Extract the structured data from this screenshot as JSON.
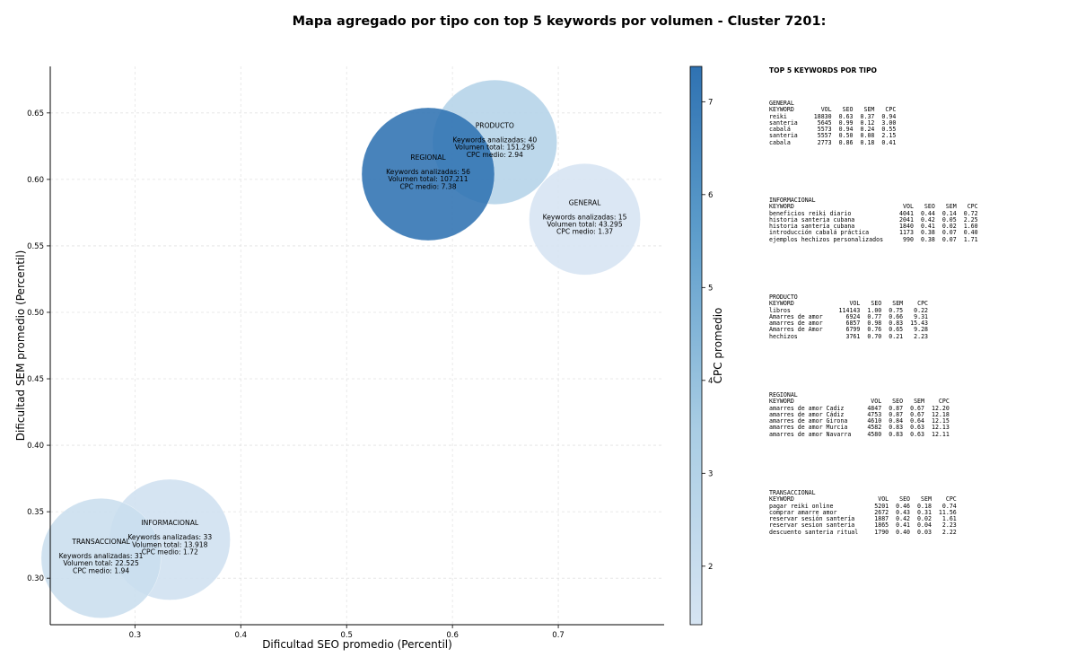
{
  "title": "Mapa agregado por tipo con top 5 keywords por volumen - Cluster 7201:",
  "chart_data": {
    "type": "scatter",
    "xlabel": "Dificultad SEO promedio (Percentil)",
    "ylabel": "Dificultad SEM promedio (Percentil)",
    "xlim": [
      0.22,
      0.8
    ],
    "ylim": [
      0.265,
      0.685
    ],
    "xticks": [
      0.3,
      0.4,
      0.5,
      0.6,
      0.7
    ],
    "yticks": [
      0.3,
      0.35,
      0.4,
      0.45,
      0.5,
      0.55,
      0.6,
      0.65
    ],
    "xtick_labels": [
      "0.3",
      "0.4",
      "0.5",
      "0.6",
      "0.7"
    ],
    "ytick_labels": [
      "0.30",
      "0.35",
      "0.40",
      "0.45",
      "0.50",
      "0.55",
      "0.60",
      "0.65"
    ],
    "grid": true,
    "size_encoding": "Volumen total",
    "color_encoding": "CPC promedio",
    "colorbar": {
      "label": "CPC promedio",
      "range": [
        1.37,
        7.38
      ],
      "ticks": [
        2,
        3,
        4,
        5,
        6,
        7
      ],
      "tick_labels": [
        "2",
        "3",
        "4",
        "5",
        "6",
        "7"
      ]
    },
    "points": [
      {
        "name": "PRODUCTO",
        "x": 0.64,
        "y": 0.628,
        "keywords": 40,
        "volumen_label": "151.295",
        "cpc": 2.94,
        "lines": [
          "Keywords analizadas: 40",
          "Volumen total: 151.295",
          "CPC medio: 2.94"
        ]
      },
      {
        "name": "REGIONAL",
        "x": 0.577,
        "y": 0.604,
        "keywords": 56,
        "volumen_label": "107.211",
        "cpc": 7.38,
        "lines": [
          "Keywords analizadas: 56",
          "Volumen total: 107.211",
          "CPC medio: 7.38"
        ]
      },
      {
        "name": "GENERAL",
        "x": 0.725,
        "y": 0.57,
        "keywords": 15,
        "volumen_label": "43.295",
        "cpc": 1.37,
        "lines": [
          "Keywords analizadas: 15",
          "Volumen total: 43.295",
          "CPC medio: 1.37"
        ]
      },
      {
        "name": "INFORMACIONAL",
        "x": 0.333,
        "y": 0.329,
        "keywords": 33,
        "volumen_label": "13.918",
        "cpc": 1.72,
        "lines": [
          "Keywords analizadas: 33",
          "Volumen total: 13.918",
          "CPC medio: 1.72"
        ]
      },
      {
        "name": "TRANSACCIONAL",
        "x": 0.268,
        "y": 0.315,
        "keywords": 31,
        "volumen_label": "22.525",
        "cpc": 1.94,
        "lines": [
          "Keywords analizadas: 31",
          "Volumen total: 22.525",
          "CPC medio: 1.94"
        ]
      }
    ]
  },
  "panel": {
    "title": "TOP 5 KEYWORDS POR TIPO",
    "columns": [
      "KEYWORD",
      "VOL",
      "SEO",
      "SEM",
      "CPC"
    ],
    "sections": [
      {
        "name": "GENERAL",
        "rows": [
          [
            "reiki",
            "18830",
            "0.63",
            "0.37",
            "0.94"
          ],
          [
            "santeria",
            "5645",
            "0.99",
            "0.12",
            "3.00"
          ],
          [
            "cabalá",
            "5573",
            "0.94",
            "0.24",
            "0.55"
          ],
          [
            "santeria",
            "5557",
            "0.50",
            "0.08",
            "2.15"
          ],
          [
            "cabala",
            "2773",
            "0.86",
            "0.18",
            "0.41"
          ]
        ]
      },
      {
        "name": "INFORMACIONAL",
        "rows": [
          [
            "beneficios reiki diario",
            "4041",
            "0.44",
            "0.14",
            "0.72"
          ],
          [
            "historia santeria cubana",
            "2041",
            "0.42",
            "0.05",
            "2.25"
          ],
          [
            "historia santería cubana",
            "1840",
            "0.41",
            "0.02",
            "1.60"
          ],
          [
            "introducción cabalá práctica",
            "1173",
            "0.38",
            "0.07",
            "0.40"
          ],
          [
            "ejemplos hechizos personalizados",
            "990",
            "0.38",
            "0.07",
            "1.71"
          ]
        ]
      },
      {
        "name": "PRODUCTO",
        "rows": [
          [
            "libros",
            "114143",
            "1.00",
            "0.75",
            "0.22"
          ],
          [
            "Amarres de amor",
            "6924",
            "0.77",
            "0.66",
            "9.31"
          ],
          [
            "amarres de amor",
            "6857",
            "0.98",
            "0.83",
            "15.43"
          ],
          [
            "Amarres de Amor",
            "6799",
            "0.76",
            "0.65",
            "9.28"
          ],
          [
            "hechizos",
            "3761",
            "0.70",
            "0.21",
            "2.23"
          ]
        ]
      },
      {
        "name": "REGIONAL",
        "rows": [
          [
            "amarres de amor Cadiz",
            "4847",
            "0.87",
            "0.67",
            "12.20"
          ],
          [
            "amarres de amor Cádiz",
            "4753",
            "0.87",
            "0.67",
            "12.18"
          ],
          [
            "amarres de amor Girona",
            "4610",
            "0.84",
            "0.64",
            "12.15"
          ],
          [
            "amarres de amor Murcia",
            "4582",
            "0.83",
            "0.63",
            "12.13"
          ],
          [
            "amarres de amor Navarra",
            "4580",
            "0.83",
            "0.63",
            "12.11"
          ]
        ]
      },
      {
        "name": "TRANSACCIONAL",
        "rows": [
          [
            "pagar reiki online",
            "5201",
            "0.46",
            "0.18",
            "0.74"
          ],
          [
            "comprar amarre amor",
            "2672",
            "0.43",
            "0.31",
            "11.56"
          ],
          [
            "reservar sesión santería",
            "1887",
            "0.42",
            "0.02",
            "1.61"
          ],
          [
            "reservar sesion santeria",
            "1865",
            "0.41",
            "0.04",
            "2.23"
          ],
          [
            "descuento santeria ritual",
            "1790",
            "0.40",
            "0.03",
            "2.22"
          ]
        ]
      }
    ]
  }
}
